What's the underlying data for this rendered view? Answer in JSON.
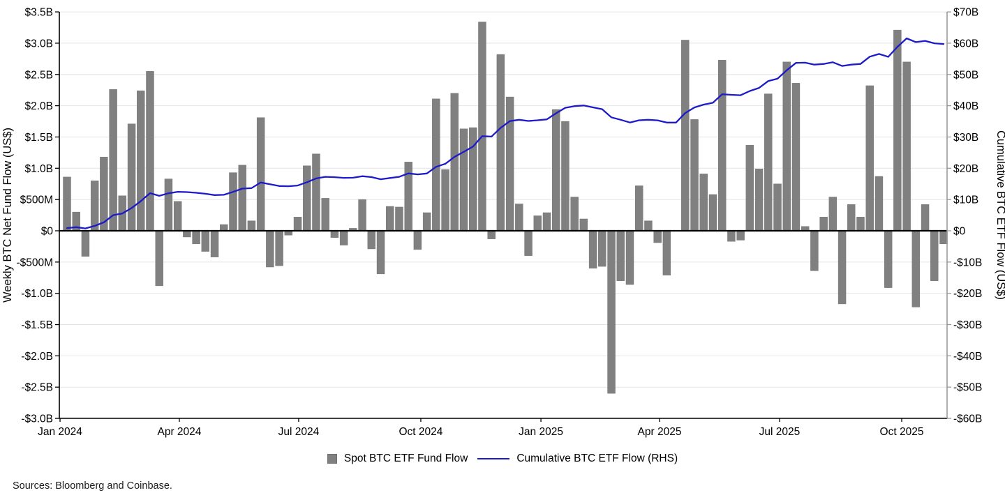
{
  "source_note": "Sources: Bloomberg and Coinbase.",
  "chart_data": {
    "type": "combo_bar_line",
    "title": "",
    "left_axis": {
      "title": "Weekly BTC Net Fund Flow (US$)",
      "range": [
        -3.0,
        3.5
      ],
      "tick_step": 0.5,
      "ticks": [
        {
          "label": "$3.5B",
          "value": 3.5
        },
        {
          "label": "$3.0B",
          "value": 3.0
        },
        {
          "label": "$2.5B",
          "value": 2.5
        },
        {
          "label": "$2.0B",
          "value": 2.0
        },
        {
          "label": "$1.5B",
          "value": 1.5
        },
        {
          "label": "$1.0B",
          "value": 1.0
        },
        {
          "label": "$500M",
          "value": 0.5
        },
        {
          "label": "$0",
          "value": 0.0
        },
        {
          "label": "-$500M",
          "value": -0.5
        },
        {
          "label": "-$1.0B",
          "value": -1.0
        },
        {
          "label": "-$1.5B",
          "value": -1.5
        },
        {
          "label": "-$2.0B",
          "value": -2.0
        },
        {
          "label": "-$2.5B",
          "value": -2.5
        },
        {
          "label": "-$3.0B",
          "value": -3.0
        }
      ]
    },
    "right_axis": {
      "title": "Cumulative BTC ETF Flow (US$)",
      "range": [
        -60,
        70
      ],
      "tick_step": 10,
      "ticks": [
        {
          "label": "$70B",
          "value": 70
        },
        {
          "label": "$60B",
          "value": 60
        },
        {
          "label": "$50B",
          "value": 50
        },
        {
          "label": "$40B",
          "value": 40
        },
        {
          "label": "$30B",
          "value": 30
        },
        {
          "label": "$20B",
          "value": 20
        },
        {
          "label": "$10B",
          "value": 10
        },
        {
          "label": "$0",
          "value": 0
        },
        {
          "label": "-$10B",
          "value": -10
        },
        {
          "label": "-$20B",
          "value": -20
        },
        {
          "label": "-$30B",
          "value": -30
        },
        {
          "label": "-$40B",
          "value": -40
        },
        {
          "label": "-$50B",
          "value": -50
        },
        {
          "label": "-$60B",
          "value": -60
        }
      ]
    },
    "x_axis": {
      "ticks": [
        {
          "label": "Jan 2024",
          "f": 0.0008
        },
        {
          "label": "Apr 2024",
          "f": 0.1352
        },
        {
          "label": "Jul 2024",
          "f": 0.2696
        },
        {
          "label": "Oct 2024",
          "f": 0.4072
        },
        {
          "label": "Jan 2025",
          "f": 0.5425
        },
        {
          "label": "Apr 2025",
          "f": 0.6761
        },
        {
          "label": "Jul 2025",
          "f": 0.8113
        },
        {
          "label": "Oct 2025",
          "f": 0.9489
        }
      ]
    },
    "legend": [
      {
        "label": "Spot BTC ETF Fund Flow",
        "type": "bar",
        "color": "#808080"
      },
      {
        "label": "Cumulative BTC ETF Flow (RHS)",
        "type": "line",
        "color": "#1d1ac9"
      }
    ],
    "grid": "horizontal",
    "colors": {
      "bar": "#808080",
      "bar_edge": "#6e6e6e",
      "line": "#1d1ac9",
      "grid": "#e4e4e4",
      "zero_line": "#000000",
      "axis": "#000000",
      "right_axis_line": "#999999",
      "text": "#000000"
    },
    "series": {
      "weekly_flow_billions_usd": [
        0.86,
        0.3,
        -0.41,
        0.8,
        1.18,
        2.26,
        0.56,
        1.71,
        2.24,
        2.55,
        -0.88,
        0.83,
        0.47,
        -0.1,
        -0.21,
        -0.33,
        -0.42,
        0.1,
        0.93,
        1.05,
        0.16,
        1.81,
        -0.58,
        -0.56,
        -0.07,
        0.22,
        1.04,
        1.23,
        0.52,
        -0.11,
        -0.23,
        0.04,
        0.5,
        -0.29,
        -0.69,
        0.39,
        0.38,
        1.1,
        -0.3,
        0.29,
        2.11,
        0.98,
        2.2,
        1.63,
        1.65,
        3.34,
        -0.13,
        2.82,
        2.14,
        0.43,
        -0.4,
        0.24,
        0.29,
        1.94,
        1.75,
        0.54,
        0.19,
        -0.6,
        -0.57,
        -2.6,
        -0.8,
        -0.86,
        0.72,
        0.16,
        -0.19,
        -0.71,
        0.0,
        3.05,
        1.78,
        0.91,
        0.58,
        2.73,
        -0.17,
        -0.15,
        1.37,
        0.99,
        2.19,
        0.75,
        2.7,
        2.36,
        0.07,
        -0.64,
        0.22,
        0.54,
        -1.17,
        0.42,
        0.22,
        2.32,
        0.87,
        -0.91,
        3.21,
        2.7,
        -1.22,
        0.42,
        -0.8,
        -0.21
      ],
      "cumulative_flow_billions_usd": [
        0.86,
        1.16,
        0.75,
        1.55,
        2.73,
        4.99,
        5.55,
        7.26,
        9.5,
        12.05,
        11.17,
        12.0,
        12.47,
        12.37,
        12.16,
        11.83,
        11.41,
        11.51,
        12.44,
        13.49,
        13.65,
        15.46,
        14.88,
        14.32,
        14.25,
        14.47,
        15.51,
        16.74,
        17.26,
        17.15,
        16.92,
        16.96,
        17.46,
        17.17,
        16.48,
        16.87,
        17.25,
        18.35,
        18.05,
        18.34,
        20.45,
        21.43,
        23.63,
        25.26,
        26.91,
        30.25,
        30.12,
        32.94,
        35.08,
        35.51,
        35.11,
        35.35,
        35.64,
        37.58,
        39.33,
        39.87,
        40.06,
        39.46,
        38.89,
        36.29,
        35.49,
        34.63,
        35.35,
        35.51,
        35.32,
        34.61,
        34.61,
        37.66,
        39.44,
        40.35,
        40.93,
        43.66,
        43.49,
        43.34,
        44.71,
        45.7,
        47.89,
        48.64,
        51.34,
        53.7,
        53.77,
        53.13,
        53.35,
        53.89,
        52.72,
        53.14,
        53.36,
        55.68,
        56.55,
        55.64,
        58.85,
        61.55,
        60.33,
        60.75,
        59.95,
        59.74
      ]
    }
  }
}
